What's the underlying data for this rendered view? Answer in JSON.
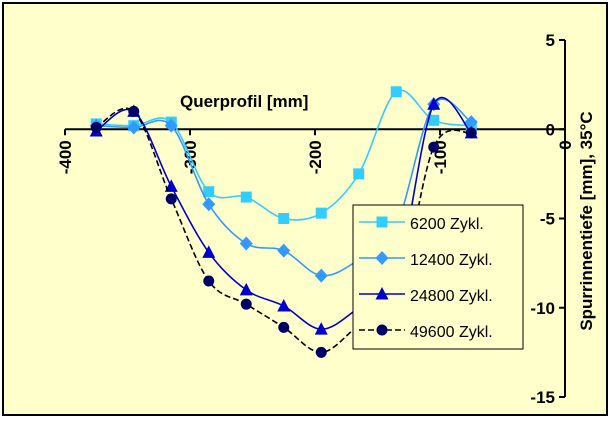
{
  "chart_data": {
    "type": "line",
    "xlabel": "Querprofil [mm]",
    "ylabel": "Spurrinnentiefe [mm], 35°C",
    "xlim": [
      -400,
      0
    ],
    "ylim": [
      -15,
      5
    ],
    "x_ticks": [
      "-400",
      "-300",
      "-200",
      "-100",
      "0"
    ],
    "y_ticks": [
      "-15",
      "-10",
      "-5",
      "0",
      "5"
    ],
    "grid": false,
    "legend_position": "bottom-right",
    "colors": {
      "plot_background": "#ffffcc",
      "chart_border": "#000000"
    },
    "series": [
      {
        "name": "6200 Zykl.",
        "color": "#33ccff",
        "marker": "square",
        "dash": "solid",
        "x": [
          -375,
          -345,
          -315,
          -285,
          -255,
          -225,
          -195,
          -165,
          -135,
          -105,
          -75
        ],
        "y": [
          0.3,
          0.2,
          0.4,
          -3.5,
          -3.8,
          -5.0,
          -4.7,
          -2.5,
          2.1,
          0.5,
          0.2
        ]
      },
      {
        "name": "12400 Zykl.",
        "color": "#3399ff",
        "marker": "diamond",
        "dash": "solid",
        "x": [
          -375,
          -345,
          -315,
          -285,
          -255,
          -225,
          -195,
          -165,
          -135,
          -105,
          -75
        ],
        "y": [
          0.2,
          0.1,
          0.2,
          -4.2,
          -6.4,
          -6.8,
          -8.2,
          -7.3,
          -5.4,
          1.4,
          0.4
        ]
      },
      {
        "name": "24800 Zykl.",
        "color": "#0000cc",
        "marker": "triangle",
        "dash": "solid",
        "x": [
          -375,
          -345,
          -315,
          -285,
          -255,
          -225,
          -195,
          -165,
          -135,
          -105,
          -75
        ],
        "y": [
          -0.1,
          1.0,
          -3.2,
          -6.9,
          -9.0,
          -9.9,
          -11.2,
          -10.0,
          -8.3,
          1.4,
          -0.2
        ]
      },
      {
        "name": "49600 Zykl.",
        "color": "#000066",
        "marker": "circle",
        "dash": "dashed",
        "x": [
          -375,
          -345,
          -315,
          -285,
          -255,
          -225,
          -195,
          -165,
          -135,
          -105,
          -75
        ],
        "y": [
          0.1,
          1.0,
          -3.9,
          -8.5,
          -9.8,
          -11.1,
          -12.5,
          -11.0,
          -9.7,
          -1.0,
          -0.2
        ]
      }
    ]
  }
}
